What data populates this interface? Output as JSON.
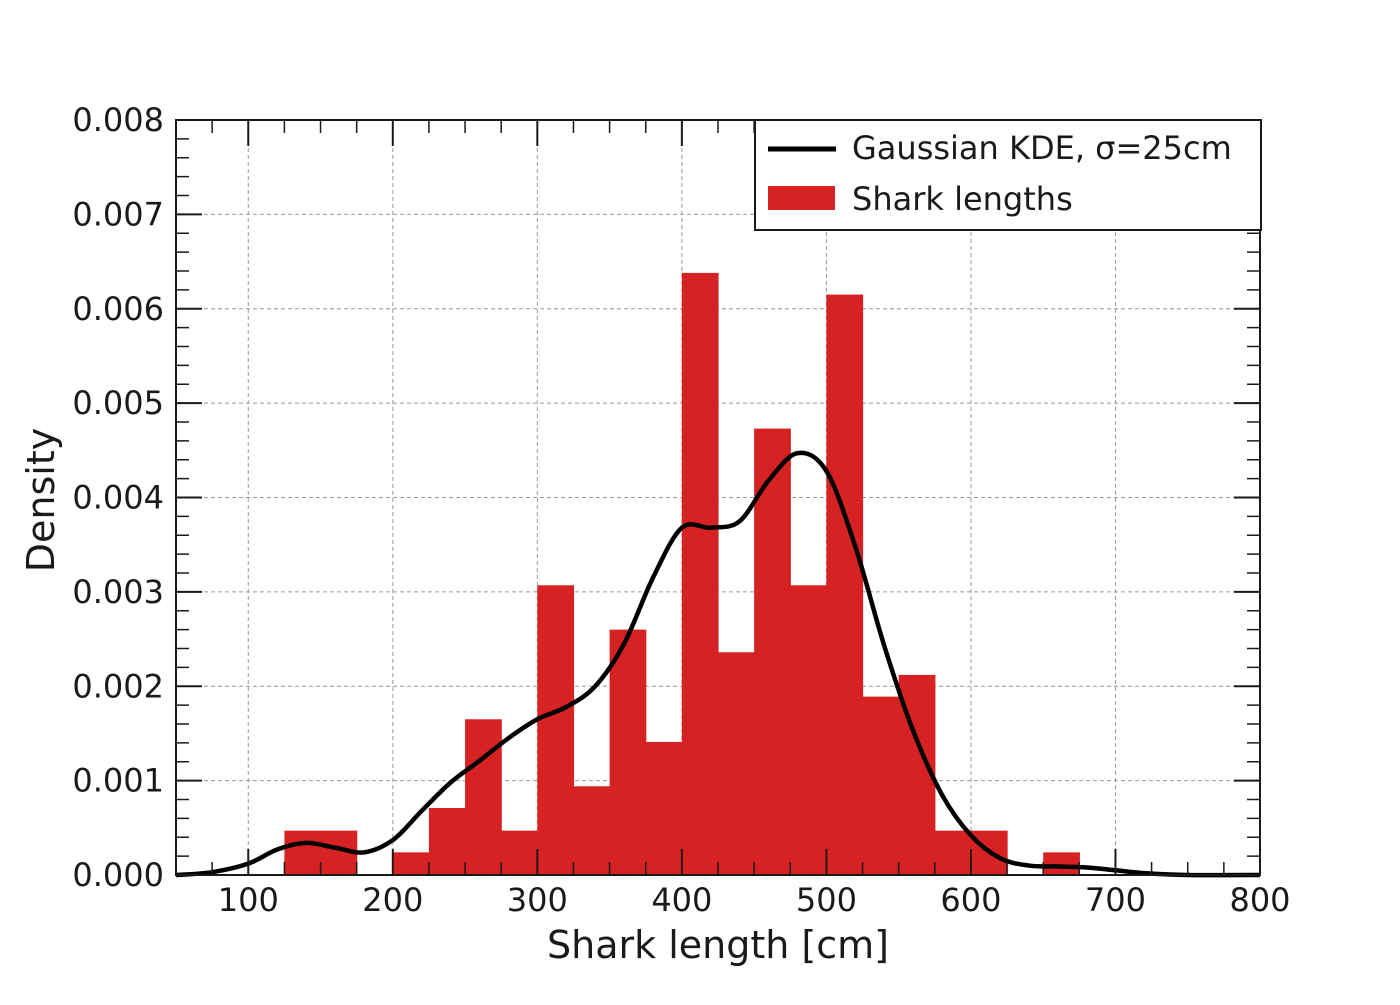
{
  "colors": {
    "bar": "#d62222",
    "kde": "#000000",
    "grid": "#9a9a9a",
    "axis": "#1a1a1a"
  },
  "chart_data": {
    "type": "bar",
    "title": "",
    "xlabel": "Shark length [cm]",
    "ylabel": "Density",
    "xlim": [
      50,
      800
    ],
    "ylim": [
      0,
      0.008
    ],
    "xticks": [
      100,
      200,
      300,
      400,
      500,
      600,
      700,
      800
    ],
    "xtick_labels": [
      "100",
      "200",
      "300",
      "400",
      "500",
      "600",
      "700",
      "800"
    ],
    "yticks": [
      0,
      0.001,
      0.002,
      0.003,
      0.004,
      0.005,
      0.006,
      0.007,
      0.008
    ],
    "ytick_labels": [
      "0.000",
      "0.001",
      "0.002",
      "0.003",
      "0.004",
      "0.005",
      "0.006",
      "0.007",
      "0.008"
    ],
    "grid": true,
    "legend_position": "top-right",
    "legend": {
      "kde_label": "Gaussian KDE, σ=25cm",
      "bar_label": "Shark lengths"
    },
    "series": [
      {
        "name": "Shark lengths",
        "type": "histogram",
        "bin_width": 25,
        "bin_starts": [
          125,
          150,
          200,
          225,
          250,
          275,
          300,
          325,
          350,
          375,
          400,
          425,
          450,
          475,
          500,
          525,
          550,
          575,
          600,
          650
        ],
        "values": [
          0.00047,
          0.00047,
          0.00024,
          0.00071,
          0.00165,
          0.00047,
          0.00307,
          0.00094,
          0.0026,
          0.00141,
          0.00638,
          0.00236,
          0.00473,
          0.00307,
          0.00615,
          0.00189,
          0.00212,
          0.00047,
          0.00047,
          0.00024
        ]
      },
      {
        "name": "Gaussian KDE, σ=25cm",
        "type": "line",
        "x": [
          50,
          75,
          100,
          120,
          140,
          160,
          180,
          200,
          220,
          240,
          260,
          280,
          300,
          320,
          340,
          360,
          380,
          400,
          420,
          440,
          460,
          480,
          500,
          520,
          540,
          560,
          580,
          600,
          620,
          640,
          660,
          680,
          700,
          720,
          750,
          800
        ],
        "y": [
          0.0,
          3e-05,
          0.00012,
          0.00027,
          0.00034,
          0.00029,
          0.00024,
          0.00037,
          0.00068,
          0.00098,
          0.00121,
          0.00145,
          0.00165,
          0.00178,
          0.002,
          0.00245,
          0.00315,
          0.00368,
          0.00368,
          0.00375,
          0.00418,
          0.00447,
          0.00428,
          0.00348,
          0.00243,
          0.00153,
          0.00085,
          0.00042,
          0.00018,
          0.0001,
          9e-05,
          8e-05,
          5e-05,
          2e-05,
          0.0,
          0.0
        ]
      }
    ]
  }
}
